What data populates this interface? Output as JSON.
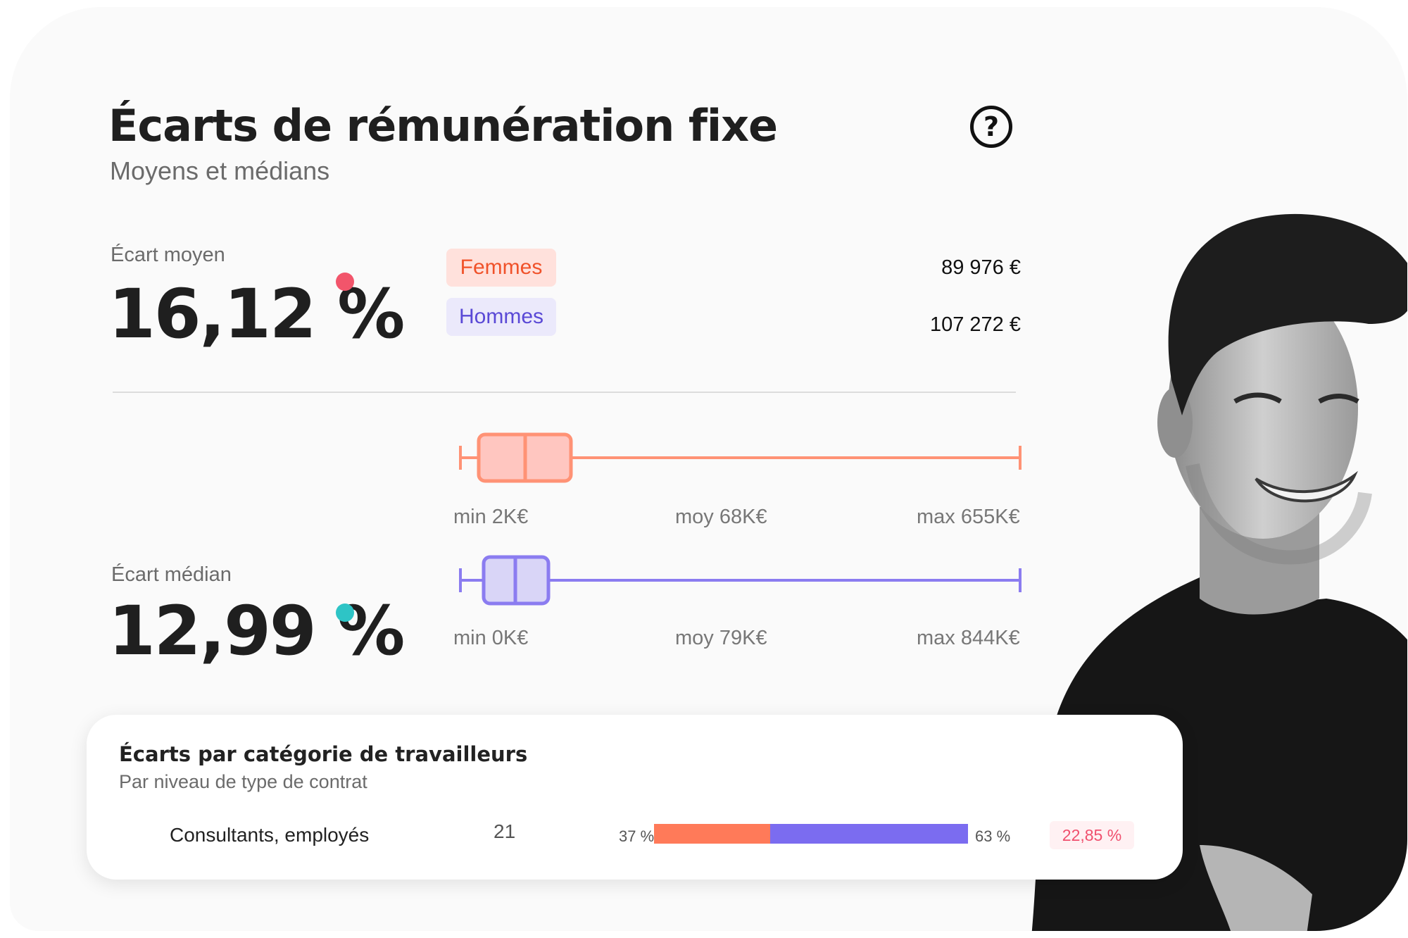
{
  "header": {
    "title": "Écarts de rémunération fixe",
    "subtitle": "Moyens et médians",
    "help_icon": "question-circle-icon",
    "help_symbol": "?"
  },
  "mean_gap": {
    "label": "Écart moyen",
    "value": "16,12 %",
    "dot_color": "#f2556b"
  },
  "legend": {
    "women_label": "Femmes",
    "men_label": "Hommes",
    "women_color": "#ff7a59",
    "women_bg": "#ffe1dc",
    "men_color": "#7b6cf0",
    "men_bg": "#ebe9fb"
  },
  "amounts": {
    "women": "89 976 €",
    "men": "107 272 €"
  },
  "median_gap": {
    "label": "Écart médian",
    "value": "12,99 %",
    "dot_color": "#2ec4c6"
  },
  "chart_data": [
    {
      "type": "boxplot",
      "series": "Femmes",
      "min_label": "min 2K€",
      "mean_label": "moy 68K€",
      "max_label": "max 655K€",
      "min": 2,
      "mean": 68,
      "max": 655,
      "unit": "K€",
      "color": "#ff9275",
      "fill": "#ffc6c0"
    },
    {
      "type": "boxplot",
      "series": "Hommes",
      "min_label": "min 0K€",
      "mean_label": "moy 79K€",
      "max_label": "max 844K€",
      "min": 0,
      "mean": 79,
      "max": 844,
      "unit": "K€",
      "color": "#8b7cf0",
      "fill": "#d9d5f7"
    }
  ],
  "categories": {
    "title": "Écarts par catégorie de travailleurs",
    "subtitle": "Par niveau de type de contrat",
    "rows": [
      {
        "name": "Consultants, employés",
        "count": "21",
        "women_pct_label": "37 %",
        "men_pct_label": "63 %",
        "women_share": 0.37,
        "men_share": 0.63,
        "gap": "22,85 %"
      }
    ]
  }
}
